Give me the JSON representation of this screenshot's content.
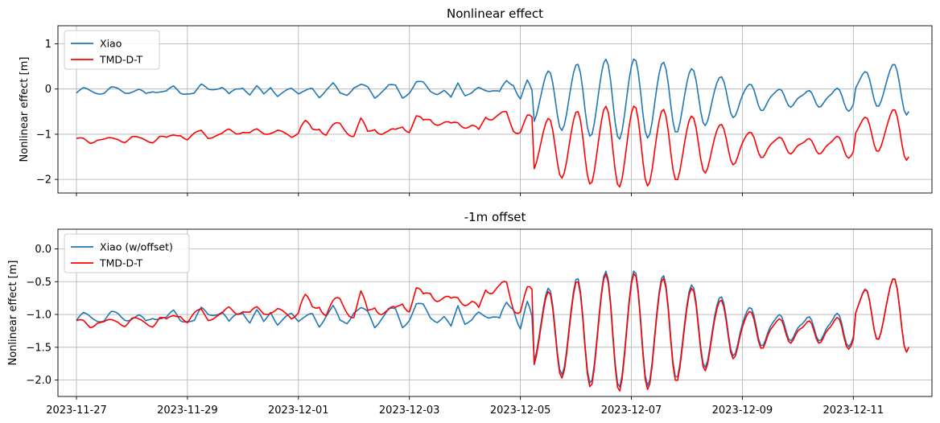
{
  "chart_data": [
    {
      "type": "line",
      "title": "Nonlinear effect",
      "xlabel": "",
      "ylabel": "Nonlinear effect [m]",
      "xlim": [
        "2023-11-26 16:00",
        "2023-12-12 10:00"
      ],
      "ylim": [
        -2.3,
        1.4
      ],
      "yticks": [
        1,
        0,
        -1,
        -2
      ],
      "ytick_labels": [
        "1",
        "0",
        "−1",
        "−2"
      ],
      "xticks": [
        "2023-11-27",
        "2023-11-29",
        "2023-12-01",
        "2023-12-03",
        "2023-12-05",
        "2023-12-07",
        "2023-12-09",
        "2023-12-11"
      ],
      "show_xtick_labels": false,
      "grid": true,
      "legend": "top-left",
      "series": [
        {
          "name": "Xiao",
          "color": "#1f77b4",
          "kind": "xiao",
          "offset": 0
        },
        {
          "name": "TMD-D-T",
          "color": "#ff0000",
          "kind": "tmd",
          "offset": 0
        }
      ]
    },
    {
      "type": "line",
      "title": "-1m offset",
      "xlabel": "",
      "ylabel": "Nonlinear effect [m]",
      "xlim": [
        "2023-11-26 16:00",
        "2023-12-12 10:00"
      ],
      "ylim": [
        -2.25,
        0.3
      ],
      "yticks": [
        0.0,
        -0.5,
        -1.0,
        -1.5,
        -2.0
      ],
      "ytick_labels": [
        "0.0",
        "−0.5",
        "−1.0",
        "−1.5",
        "−2.0"
      ],
      "xticks": [
        "2023-11-27",
        "2023-11-29",
        "2023-12-01",
        "2023-12-03",
        "2023-12-05",
        "2023-12-07",
        "2023-12-09",
        "2023-12-11"
      ],
      "show_xtick_labels": true,
      "grid": true,
      "legend": "top-left",
      "series": [
        {
          "name": "Xiao (w/offset)",
          "color": "#1f77b4",
          "kind": "xiao",
          "offset": -1
        },
        {
          "name": "TMD-D-T",
          "color": "#ff0000",
          "kind": "tmd",
          "offset": 0
        }
      ]
    }
  ]
}
